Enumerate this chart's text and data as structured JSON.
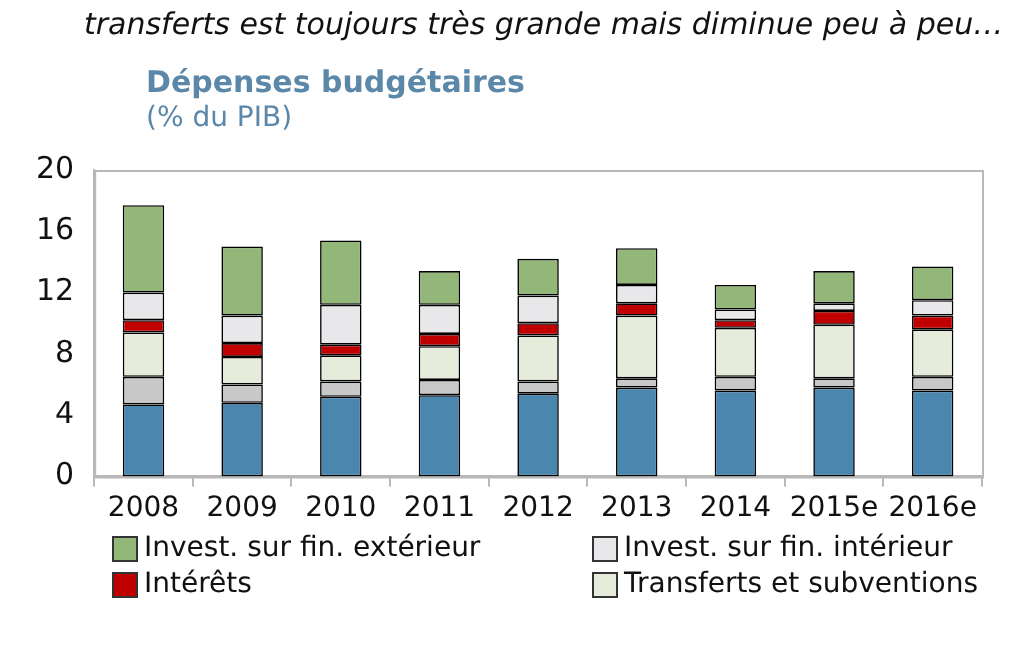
{
  "chart_data": {
    "type": "bar",
    "title": "Dépenses budgétaires",
    "subtitle": "(% du PIB)",
    "annotations": [
      "transferts est toujours très grande mais diminue peu à peu…"
    ],
    "categories": [
      "2008",
      "2009",
      "2010",
      "2011",
      "2012",
      "2013",
      "2014",
      "2015e",
      "2016e"
    ],
    "stacked": true,
    "ylim": [
      0,
      20
    ],
    "yticks": [
      0,
      4,
      8,
      12,
      16,
      20
    ],
    "grid": false,
    "legend": "bottom",
    "series": [
      {
        "color": "#4a86ae",
        "values": [
          4.7,
          4.8,
          5.2,
          5.3,
          5.4,
          5.8,
          5.6,
          5.8,
          5.6
        ]
      },
      {
        "color": "#c8c8c8",
        "values": [
          1.8,
          1.2,
          1.0,
          1.0,
          0.8,
          0.6,
          0.9,
          0.6,
          0.9
        ]
      },
      {
        "name": "Transferts et subventions",
        "color": "#e6ecdc",
        "values": [
          2.9,
          1.8,
          1.7,
          2.2,
          3.0,
          4.1,
          3.2,
          3.5,
          3.1
        ]
      },
      {
        "name": "Intérêts",
        "color": "#c00000",
        "values": [
          0.8,
          0.9,
          0.7,
          0.8,
          0.8,
          0.8,
          0.5,
          0.9,
          0.9
        ]
      },
      {
        "name": "Invest. sur fin. intérieur",
        "color": "#e8e8ea",
        "values": [
          1.8,
          1.8,
          2.6,
          1.9,
          1.8,
          1.2,
          0.7,
          0.5,
          1.0
        ]
      },
      {
        "name": "Invest. sur fin. extérieur",
        "color": "#93b778",
        "values": [
          5.7,
          4.5,
          4.2,
          2.2,
          2.4,
          2.4,
          1.6,
          2.1,
          2.2
        ]
      }
    ]
  }
}
